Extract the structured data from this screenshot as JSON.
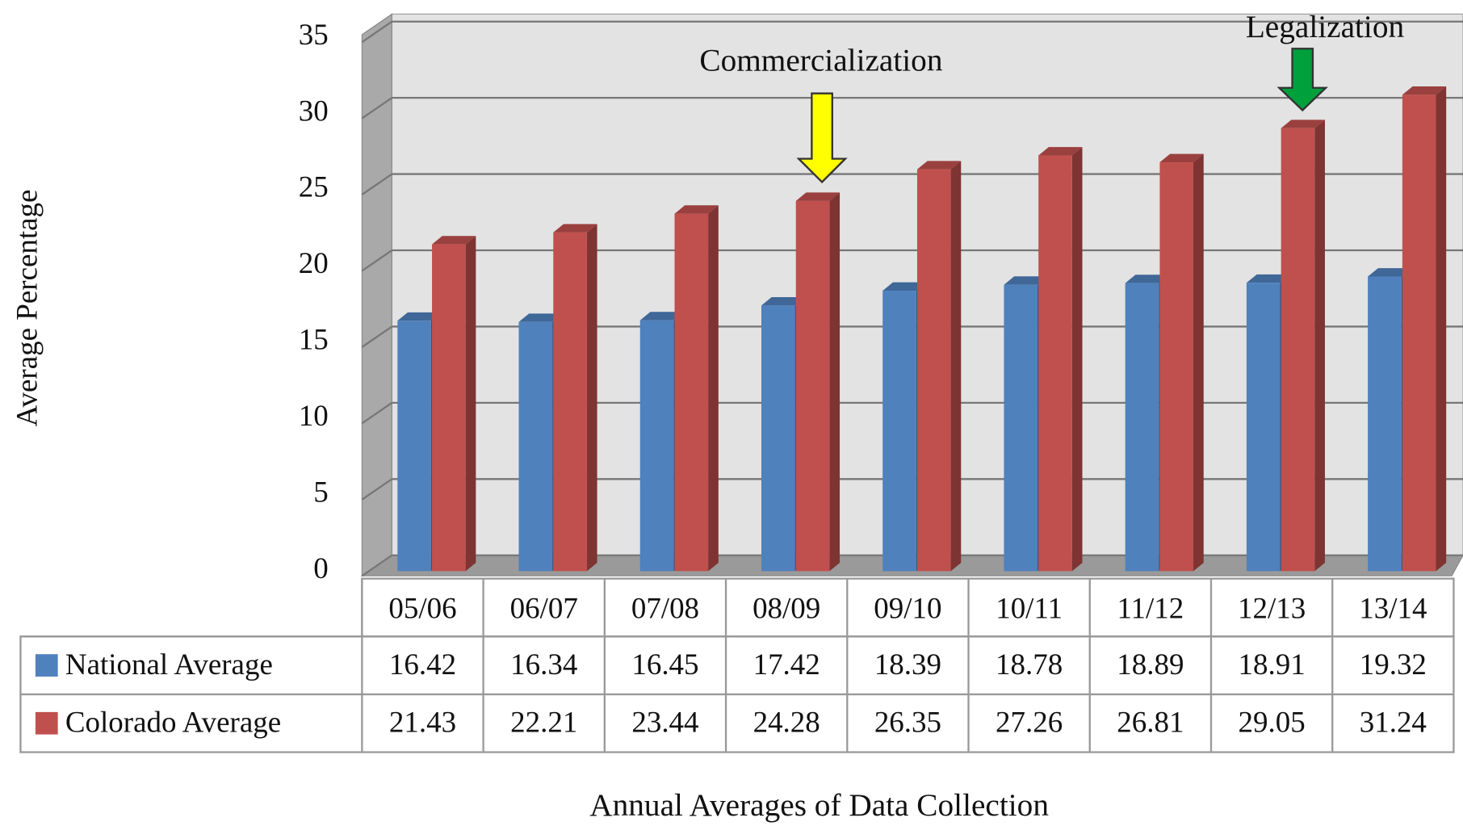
{
  "chart_data": {
    "type": "bar",
    "y_label": "Average Percentage",
    "x_label": "Annual Averages of Data Collection",
    "annotations": [
      "Commercialization",
      "Legalization"
    ],
    "categories": [
      "05/06",
      "06/07",
      "07/08",
      "08/09",
      "09/10",
      "10/11",
      "11/12",
      "12/13",
      "13/14"
    ],
    "series": [
      {
        "name": "National Average",
        "color": "#4f81bd",
        "values": [
          16.42,
          16.34,
          16.45,
          17.42,
          18.39,
          18.78,
          18.89,
          18.91,
          19.32
        ]
      },
      {
        "name": "Colorado Average",
        "color": "#c0504d",
        "values": [
          21.43,
          22.21,
          23.44,
          24.28,
          26.35,
          27.26,
          26.81,
          29.05,
          31.24
        ]
      }
    ],
    "ylim": [
      0,
      35
    ],
    "yticks": [
      0,
      5,
      10,
      15,
      20,
      25,
      30,
      35
    ],
    "grid": true,
    "legend": "table"
  }
}
